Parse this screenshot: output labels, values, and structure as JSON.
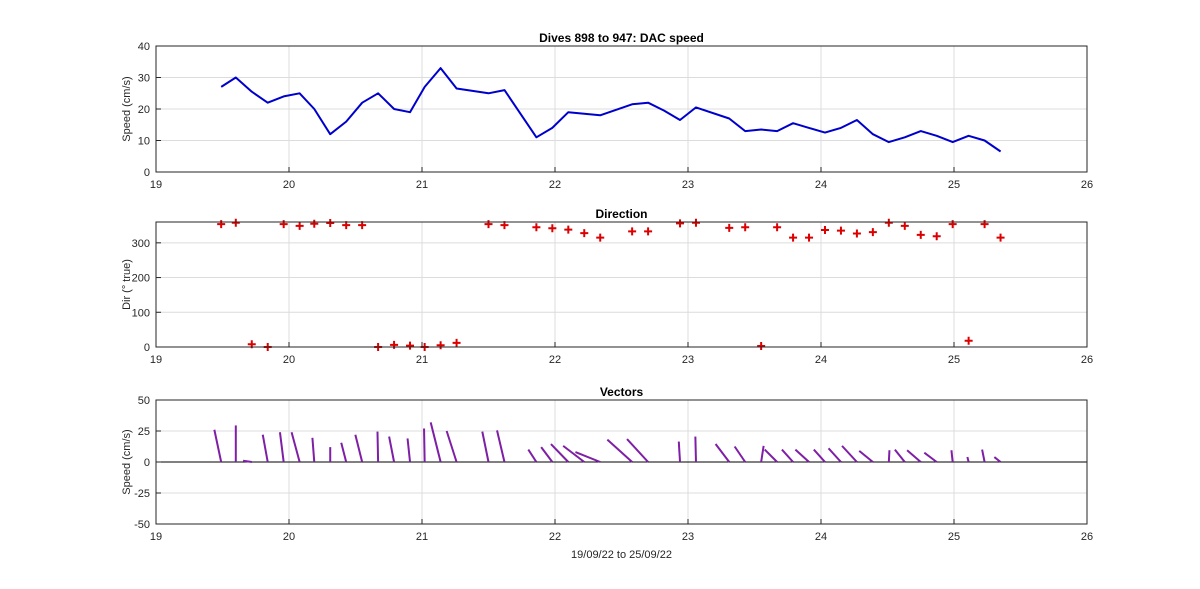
{
  "colors": {
    "speed_line": "#0000cc",
    "direction_marker": "#dd0000",
    "vector": "#7e1fa6",
    "grid": "#dcdcdc",
    "axes": "#262626"
  },
  "chart_data": [
    {
      "type": "line",
      "title": "Dives 898 to 947: DAC speed",
      "xlabel": "",
      "ylabel": "Speed (cm/s)",
      "xlim": [
        19,
        26
      ],
      "ylim": [
        0,
        40
      ],
      "xticks": [
        19,
        20,
        21,
        22,
        23,
        24,
        25,
        26
      ],
      "yticks": [
        0,
        10,
        20,
        30,
        40
      ],
      "grid": true,
      "series": [
        {
          "x": [
            19.49,
            19.6,
            19.72,
            19.84,
            19.96,
            20.08,
            20.19,
            20.31,
            20.43,
            20.55,
            20.67,
            20.79,
            20.91,
            21.02,
            21.14,
            21.26,
            21.5,
            21.62,
            21.86,
            21.98,
            22.1,
            22.34,
            22.58,
            22.7,
            22.82,
            22.94,
            23.06,
            23.31,
            23.43,
            23.55,
            23.67,
            23.79,
            23.91,
            24.03,
            24.15,
            24.27,
            24.39,
            24.51,
            24.63,
            24.75,
            24.87,
            24.99,
            25.11,
            25.23,
            25.35
          ],
          "y": [
            27,
            30,
            25.5,
            22,
            24,
            25,
            20,
            12,
            16,
            22,
            25,
            20,
            19,
            27,
            33,
            26.5,
            25,
            26,
            11,
            14,
            19,
            18,
            21.5,
            22,
            19.5,
            16.5,
            20.5,
            17,
            13,
            13.5,
            13,
            15.5,
            14,
            12.5,
            14,
            16.5,
            12,
            9.5,
            11,
            13,
            11.5,
            9.5,
            11.5,
            10,
            6.5
          ]
        }
      ]
    },
    {
      "type": "scatter",
      "title": "Direction",
      "xlabel": "",
      "ylabel": "Dir (° true)",
      "xlim": [
        19,
        26
      ],
      "ylim": [
        0,
        360
      ],
      "xticks": [
        19,
        20,
        21,
        22,
        23,
        24,
        25,
        26
      ],
      "yticks": [
        0,
        100,
        200,
        300
      ],
      "grid": true,
      "marker": "+",
      "series": [
        {
          "x": [
            19.49,
            19.6,
            19.72,
            19.84,
            19.96,
            20.08,
            20.19,
            20.31,
            20.43,
            20.55,
            20.67,
            20.79,
            20.91,
            21.02,
            21.14,
            21.26,
            21.5,
            21.62,
            21.86,
            21.98,
            22.1,
            22.22,
            22.34,
            22.58,
            22.7,
            22.94,
            23.06,
            23.31,
            23.43,
            23.55,
            23.67,
            23.79,
            23.91,
            24.03,
            24.15,
            24.27,
            24.39,
            24.51,
            24.63,
            24.75,
            24.87,
            24.99,
            25.11,
            25.23,
            25.35
          ],
          "y": [
            354,
            358,
            8,
            0,
            354,
            349,
            355,
            357,
            351,
            351,
            0,
            6,
            4,
            0,
            5,
            12,
            354,
            351,
            345,
            342,
            338,
            328,
            315,
            333,
            333,
            356,
            358,
            343,
            345,
            3,
            345,
            315,
            315,
            337,
            335,
            327,
            331,
            358,
            349,
            323,
            319,
            354,
            18,
            354,
            315
          ]
        }
      ]
    },
    {
      "type": "quiver",
      "title": "Vectors",
      "xlabel": "19/09/22 to 25/09/22",
      "ylabel": "Speed (cm/s)",
      "xlim": [
        19,
        26
      ],
      "ylim": [
        -50,
        50
      ],
      "xticks": [
        19,
        20,
        21,
        22,
        23,
        24,
        25,
        26
      ],
      "yticks": [
        -50,
        -25,
        0,
        25,
        50
      ],
      "grid": true,
      "series": [
        {
          "x": [
            19.49,
            19.6,
            19.72,
            19.84,
            19.96,
            20.08,
            20.19,
            20.31,
            20.43,
            20.55,
            20.67,
            20.79,
            20.91,
            21.02,
            21.14,
            21.26,
            21.5,
            21.62,
            21.86,
            21.98,
            22.1,
            22.22,
            22.34,
            22.58,
            22.7,
            22.94,
            23.06,
            23.31,
            23.43,
            23.55,
            23.67,
            23.79,
            23.91,
            24.03,
            24.15,
            24.27,
            24.39,
            24.51,
            24.63,
            24.75,
            24.87,
            24.99,
            25.11,
            25.23,
            25.35
          ],
          "u": [
            -5.5,
            0,
            -7,
            -4,
            -3,
            -6.5,
            -1.5,
            0,
            -4,
            -5.5,
            -0.5,
            -4,
            -2,
            -0.5,
            -8,
            -8,
            -5,
            -6,
            -6.5,
            -9,
            -14,
            -17,
            -20,
            -20,
            -17,
            -1,
            -0.5,
            -11,
            -8.5,
            2,
            -10,
            -9,
            -11,
            -9,
            -10,
            -12,
            -11,
            0.5,
            -8,
            -11,
            -10,
            -1,
            -1,
            -2,
            -5
          ],
          "v": [
            26,
            29.5,
            1,
            22,
            24,
            24,
            19.5,
            12,
            15.5,
            22,
            24.5,
            20.5,
            19,
            27,
            32,
            25,
            24.5,
            25.5,
            10,
            12,
            14.5,
            13,
            8,
            18,
            18.5,
            16.5,
            20.5,
            14.5,
            12.5,
            13,
            10,
            10,
            10,
            10,
            11,
            13,
            9,
            9.5,
            10,
            9.5,
            7.5,
            9.5,
            4,
            10,
            4
          ]
        }
      ]
    }
  ]
}
